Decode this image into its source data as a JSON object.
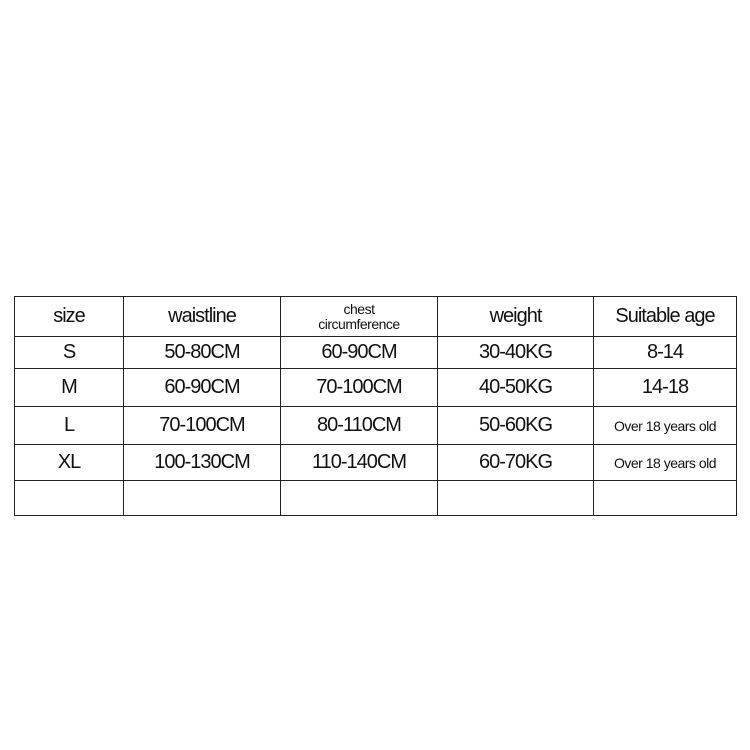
{
  "table": {
    "headers": [
      "size",
      "waistline",
      "chest circumference",
      "weight",
      "Suitable age"
    ],
    "chest_header_lines": [
      "chest",
      "circumference"
    ],
    "rows": [
      [
        "S",
        "50-80CM",
        "60-90CM",
        "30-40KG",
        "8-14"
      ],
      [
        "M",
        "60-90CM",
        "70-100CM",
        "40-50KG",
        "14-18"
      ],
      [
        "L",
        "70-100CM",
        "80-110CM",
        "50-60KG",
        "Over 18 years old"
      ],
      [
        "XL",
        "100-130CM",
        "110-140CM",
        "60-70KG",
        "Over 18 years old"
      ],
      [
        "",
        "",
        "",
        "",
        ""
      ]
    ]
  }
}
